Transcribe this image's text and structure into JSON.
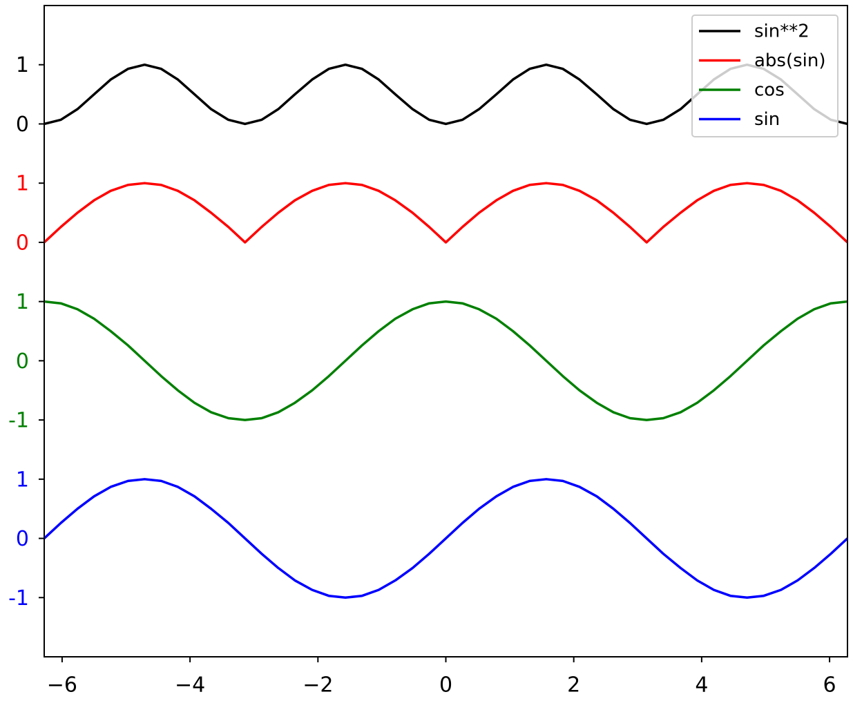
{
  "chart_data": {
    "type": "line",
    "x": [
      -6.28,
      -6.02,
      -5.76,
      -5.5,
      -5.24,
      -4.97,
      -4.71,
      -4.45,
      -4.19,
      -3.93,
      -3.67,
      -3.4,
      -3.14,
      -2.88,
      -2.62,
      -2.36,
      -2.09,
      -1.83,
      -1.57,
      -1.31,
      -1.05,
      -0.79,
      -0.52,
      -0.26,
      0,
      0.26,
      0.52,
      0.79,
      1.05,
      1.31,
      1.57,
      1.83,
      2.09,
      2.36,
      2.62,
      2.88,
      3.14,
      3.4,
      3.67,
      3.93,
      4.19,
      4.45,
      4.71,
      4.97,
      5.24,
      5.5,
      5.76,
      6.02,
      6.28
    ],
    "series": [
      {
        "name": "sin**2",
        "color": "#000000",
        "values": [
          7,
          7.07,
          7.25,
          7.5,
          7.75,
          7.93,
          8,
          7.93,
          7.75,
          7.5,
          7.25,
          7.07,
          7,
          7.07,
          7.25,
          7.5,
          7.75,
          7.93,
          8,
          7.93,
          7.75,
          7.5,
          7.25,
          7.07,
          7,
          7.07,
          7.25,
          7.5,
          7.75,
          7.93,
          8,
          7.93,
          7.75,
          7.5,
          7.25,
          7.07,
          7,
          7.07,
          7.25,
          7.5,
          7.75,
          7.93,
          8,
          7.93,
          7.75,
          7.5,
          7.25,
          7.07,
          7
        ]
      },
      {
        "name": "abs(sin)",
        "color": "#ff0000",
        "values": [
          5,
          5.26,
          5.5,
          5.71,
          5.87,
          5.97,
          6,
          5.97,
          5.87,
          5.71,
          5.5,
          5.26,
          5,
          5.26,
          5.5,
          5.71,
          5.87,
          5.97,
          6,
          5.97,
          5.87,
          5.71,
          5.5,
          5.26,
          5,
          5.26,
          5.5,
          5.71,
          5.87,
          5.97,
          6,
          5.97,
          5.87,
          5.71,
          5.5,
          5.26,
          5,
          5.26,
          5.5,
          5.71,
          5.87,
          5.97,
          6,
          5.97,
          5.87,
          5.71,
          5.5,
          5.26,
          5
        ]
      },
      {
        "name": "cos",
        "color": "#008000",
        "values": [
          4,
          3.97,
          3.87,
          3.71,
          3.5,
          3.26,
          3,
          2.74,
          2.5,
          2.29,
          2.13,
          2.03,
          2,
          2.03,
          2.13,
          2.29,
          2.5,
          2.74,
          3,
          3.26,
          3.5,
          3.71,
          3.87,
          3.97,
          4,
          3.97,
          3.87,
          3.71,
          3.5,
          3.26,
          3,
          2.74,
          2.5,
          2.29,
          2.13,
          2.03,
          2,
          2.03,
          2.13,
          2.29,
          2.5,
          2.74,
          3,
          3.26,
          3.5,
          3.71,
          3.87,
          3.97,
          4
        ]
      },
      {
        "name": "sin",
        "color": "#0000ff",
        "values": [
          0,
          0.26,
          0.5,
          0.71,
          0.87,
          0.97,
          1,
          0.97,
          0.87,
          0.71,
          0.5,
          0.26,
          0,
          -0.26,
          -0.5,
          -0.71,
          -0.87,
          -0.97,
          -1,
          -0.97,
          -0.87,
          -0.71,
          -0.5,
          -0.26,
          0,
          0.26,
          0.5,
          0.71,
          0.87,
          0.97,
          1,
          0.97,
          0.87,
          0.71,
          0.5,
          0.26,
          0,
          -0.26,
          -0.5,
          -0.71,
          -0.87,
          -0.97,
          -1,
          -0.97,
          -0.87,
          -0.71,
          -0.5,
          -0.26,
          0
        ]
      }
    ],
    "xlim": [
      -6.28,
      6.28
    ],
    "xticks": [
      {
        "value": -6,
        "label": "−6"
      },
      {
        "value": -4,
        "label": "−4"
      },
      {
        "value": -2,
        "label": "−2"
      },
      0,
      2,
      4,
      6
    ],
    "ylim": [
      -2,
      9
    ],
    "yticks": [
      {
        "value": -1,
        "label": "-1"
      },
      {
        "value": 0,
        "label": "0"
      },
      {
        "value": 1,
        "label": "1"
      },
      {
        "value": 2,
        "label": "-1"
      },
      {
        "value": 3,
        "label": "0"
      },
      {
        "value": 4,
        "label": "1"
      },
      {
        "value": 5,
        "label": "0"
      },
      {
        "value": 6,
        "label": "1"
      },
      {
        "value": 7,
        "label": "0"
      },
      {
        "value": 8,
        "label": "1"
      }
    ],
    "ytick_colors": [
      "#0000ff",
      "#0000ff",
      "#0000ff",
      "#008000",
      "#008000",
      "#008000",
      "#ff0000",
      "#ff0000",
      "#000000",
      "#000000"
    ],
    "legend": "upper right",
    "grid": false
  }
}
